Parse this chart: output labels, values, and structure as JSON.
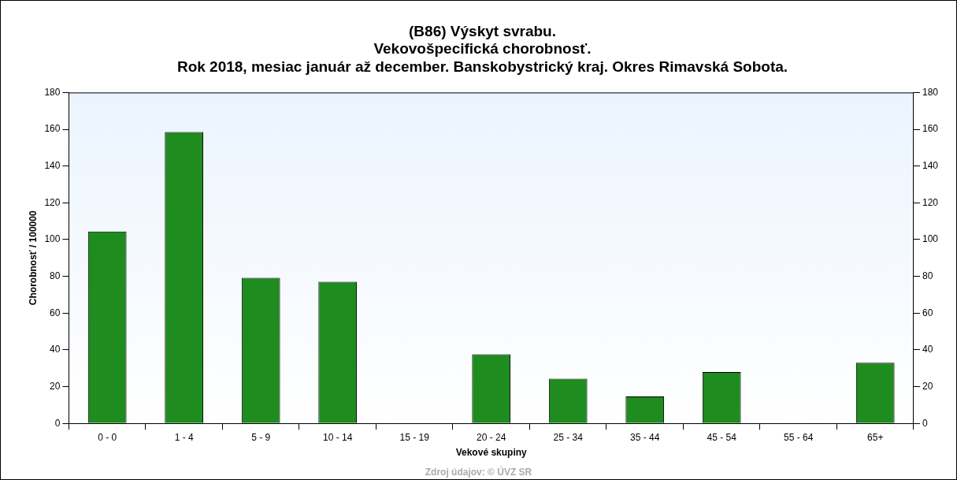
{
  "chart_data": {
    "type": "bar",
    "title": "(B86) Výskyt svrabu.",
    "subtitle": "Vekovošpecifická chorobnosť.\nRok 2018, mesiac január až december. Banskobystrický kraj. Okres Rimavská Sobota.",
    "xlabel": "Vekové skupiny",
    "ylabel": "Chorobnosť / 100000",
    "categories": [
      "0 - 0",
      "1 - 4",
      "5 - 9",
      "10 - 14",
      "15 - 19",
      "20 - 24",
      "25 - 34",
      "35 - 44",
      "45 - 54",
      "55 - 64",
      "65+"
    ],
    "values": [
      104.4,
      158.5,
      79.2,
      77,
      0,
      37.6,
      24.3,
      14.7,
      28,
      0,
      33
    ],
    "color": "#1e8c1e",
    "ylim": [
      0,
      180
    ],
    "yticks": [
      0,
      20,
      40,
      60,
      80,
      100,
      120,
      140,
      160,
      180
    ],
    "y2lim": [
      0,
      180
    ],
    "y2ticks": [
      0,
      20,
      40,
      60,
      80,
      100,
      120,
      140,
      160,
      180
    ],
    "grid": false,
    "legend": false,
    "annotations": [
      "Zdroj údajov: © ÚVZ SR"
    ]
  }
}
